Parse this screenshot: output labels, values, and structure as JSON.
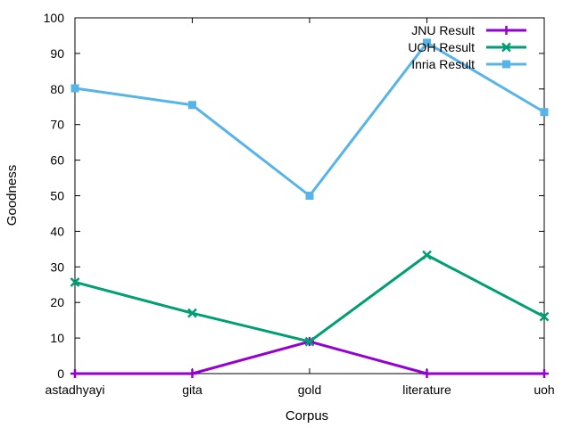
{
  "chart_data": {
    "type": "line",
    "title": "",
    "xlabel": "Corpus",
    "ylabel": "Goodness",
    "categories": [
      "astadhyayi",
      "gita",
      "gold",
      "literature",
      "uoh"
    ],
    "ylim": [
      0,
      100
    ],
    "yticks": [
      0,
      10,
      20,
      30,
      40,
      50,
      60,
      70,
      80,
      90,
      100
    ],
    "legend_position": "top-right",
    "series": [
      {
        "name": "JNU Result",
        "color": "#9400d3",
        "marker": "plus",
        "values": [
          0,
          0,
          9,
          0,
          0
        ]
      },
      {
        "name": "UOH Result",
        "color": "#009e73",
        "marker": "x",
        "values": [
          25.7,
          17,
          9,
          33.3,
          16
        ]
      },
      {
        "name": "Inria Result",
        "color": "#56b4e9",
        "marker": "square",
        "values": [
          80.2,
          75.5,
          50,
          93,
          73.5
        ]
      }
    ]
  }
}
